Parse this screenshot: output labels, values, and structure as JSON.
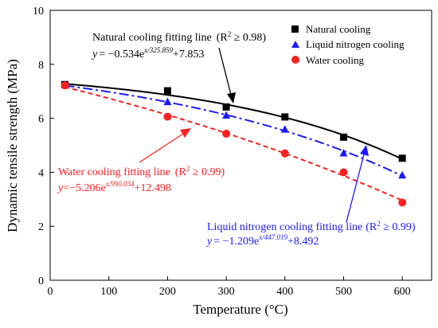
{
  "chart_data": {
    "type": "scatter",
    "xlabel": "Temperature (°C)",
    "ylabel": "Dynamic tensile strength (MPa)",
    "xlim": [
      0,
      650
    ],
    "ylim": [
      0,
      10
    ],
    "xticks": [
      0,
      100,
      200,
      300,
      400,
      500,
      600
    ],
    "yticks": [
      0,
      2,
      4,
      6,
      8,
      10
    ],
    "grid": false,
    "legend_position": "top-right",
    "series": [
      {
        "name": "Natural cooling",
        "marker": "square",
        "color": "#000000",
        "x": [
          25,
          200,
          300,
          400,
          500,
          600
        ],
        "y": [
          7.25,
          7.02,
          6.42,
          6.05,
          5.3,
          4.52
        ],
        "fit": {
          "style": "solid",
          "a": -0.534,
          "b": 325.859,
          "c": 7.853,
          "label": "Natural cooling fitting line",
          "r2": "(R",
          "r2_tail": " ≥ 0.98)",
          "eq_prefix": "y",
          "eq_mid": "= −0.534e",
          "eq_exp": "x/325.859",
          "eq_tail": "+7.853"
        }
      },
      {
        "name": "Liquid nitrogen cooling",
        "marker": "triangle",
        "color": "#1a1aff",
        "x": [
          25,
          200,
          300,
          400,
          500,
          600
        ],
        "y": [
          7.25,
          6.62,
          6.12,
          5.6,
          4.72,
          3.9
        ],
        "fit": {
          "style": "dashdot",
          "a": -1.209,
          "b": 447.019,
          "c": 8.492,
          "label": "Liquid nitrogen  cooling fitting line",
          "r2": "(R",
          "r2_tail": " ≥ 0.99)",
          "eq_prefix": "y",
          "eq_mid": "= −1.209e",
          "eq_exp": "x/447.019",
          "eq_tail": "+8.492"
        }
      },
      {
        "name": "Water cooling",
        "marker": "circle",
        "color": "#ff2020",
        "x": [
          25,
          200,
          300,
          400,
          500,
          600
        ],
        "y": [
          7.22,
          6.06,
          5.43,
          4.7,
          4.0,
          2.88
        ],
        "fit": {
          "style": "dashed",
          "a": -5.206,
          "b": 990.034,
          "c": 12.498,
          "label": "Water cooling fitting line",
          "r2": "(R",
          "r2_tail": " ≥ 0.99)",
          "eq_prefix": "y",
          "eq_mid": "=−5.206e",
          "eq_exp": "x/990.034",
          "eq_tail": "+12.498"
        }
      }
    ],
    "superscript_two": "2"
  }
}
